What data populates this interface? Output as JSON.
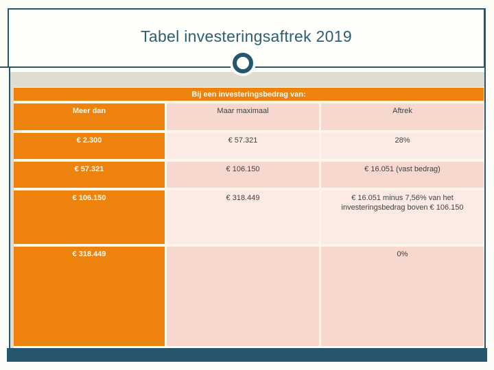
{
  "slide": {
    "title": "Tabel investeringsaftrek 2019"
  },
  "table": {
    "banner": "Bij een investeringsbedrag van:",
    "columns": [
      "Meer dan",
      "Maar maximaal",
      "Aftrek"
    ],
    "rows": [
      {
        "meer_dan": "€ 2.300",
        "maar_maximaal": "€ 57.321",
        "aftrek": "28%"
      },
      {
        "meer_dan": "€ 57.321",
        "maar_maximaal": "€ 106.150",
        "aftrek": "€ 16.051 (vast bedrag)"
      },
      {
        "meer_dan": "€ 106.150",
        "maar_maximaal": "€ 318.449",
        "aftrek": "€ 16.051 minus 7,56% van het investeringsbedrag boven € 106.150"
      },
      {
        "meer_dan": "€ 318.449",
        "maar_maximaal": "",
        "aftrek": "0%"
      }
    ]
  },
  "colors": {
    "accent_orange": "#ED820D",
    "accent_teal": "#26566D",
    "row_pink_dark": "#F6D8CE",
    "row_pink_light": "#FBEBE4",
    "band_beige": "#E0DCD2",
    "title_text": "#2E5E72",
    "cell_text": "#3F3F3F"
  }
}
